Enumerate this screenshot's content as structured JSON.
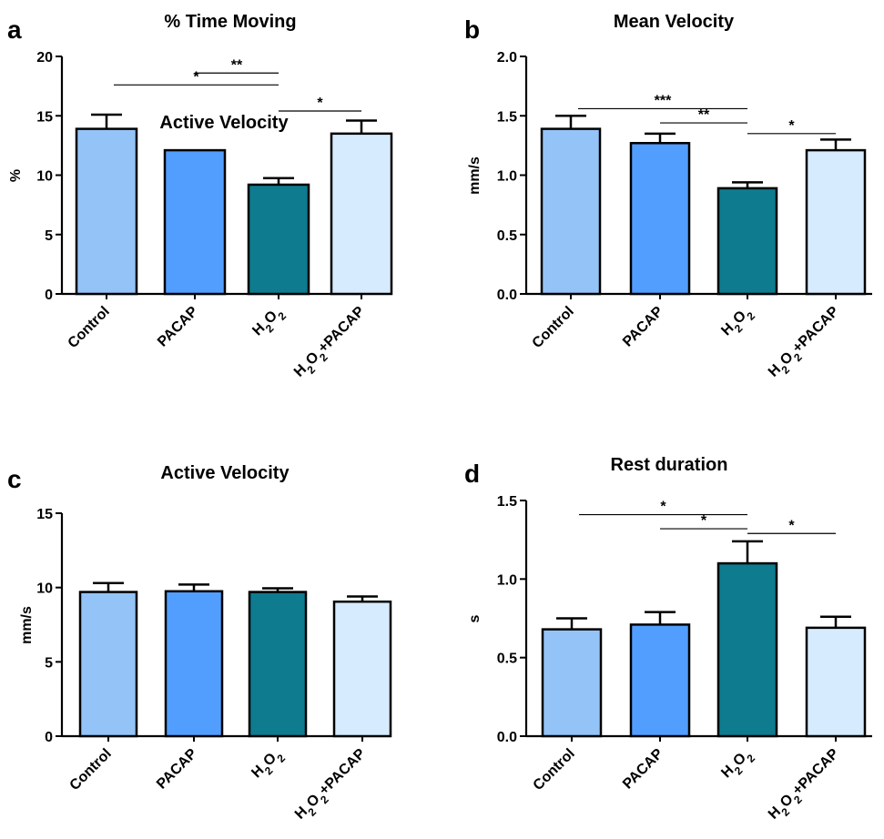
{
  "figure": {
    "panels": [
      {
        "letter": "a",
        "title": "% Time Moving",
        "overlay_text": "Active Velocity",
        "ylabel": "%",
        "ylim": [
          0,
          20
        ],
        "yticks": [
          "0",
          "5",
          "10",
          "15",
          "20"
        ],
        "categories": [
          "Control",
          "PACAP",
          "H2O2",
          "H2O2+PACAP"
        ],
        "values": [
          13.9,
          12.1,
          9.2,
          13.5
        ],
        "errors": [
          1.2,
          0,
          0.55,
          1.1
        ],
        "significance": [
          {
            "from": 0,
            "to": 2,
            "label": "*",
            "level": 17.6
          },
          {
            "from": 1,
            "to": 2,
            "label": "**",
            "level": 18.6
          },
          {
            "from": 2,
            "to": 3,
            "label": "*",
            "level": 15.4
          }
        ]
      },
      {
        "letter": "b",
        "title": "Mean Velocity",
        "ylabel": "mm/s",
        "ylim": [
          0,
          2.0
        ],
        "yticks": [
          "0.0",
          "0.5",
          "1.0",
          "1.5",
          "2.0"
        ],
        "categories": [
          "Control",
          "PACAP",
          "H2O2",
          "H2O2+PACAP"
        ],
        "values": [
          1.39,
          1.27,
          0.89,
          1.21
        ],
        "errors": [
          0.11,
          0.08,
          0.05,
          0.09
        ],
        "significance": [
          {
            "from": 0,
            "to": 2,
            "label": "***",
            "level": 1.56
          },
          {
            "from": 1,
            "to": 2,
            "label": "**",
            "level": 1.44
          },
          {
            "from": 2,
            "to": 3,
            "label": "*",
            "level": 1.35
          }
        ]
      },
      {
        "letter": "c",
        "title": "Active Velocity",
        "ylabel": "mm/s",
        "ylim": [
          0,
          15
        ],
        "yticks": [
          "0",
          "5",
          "10",
          "15"
        ],
        "categories": [
          "Control",
          "PACAP",
          "H2O2",
          "H2O2+PACAP"
        ],
        "values": [
          9.7,
          9.75,
          9.7,
          9.05
        ],
        "errors": [
          0.6,
          0.45,
          0.25,
          0.35
        ],
        "significance": []
      },
      {
        "letter": "d",
        "title": "Rest duration",
        "ylabel": "s",
        "ylim": [
          0,
          1.5
        ],
        "yticks": [
          "0.0",
          "0.5",
          "1.0",
          "1.5"
        ],
        "categories": [
          "Control",
          "PACAP",
          "H2O2",
          "H2O2+PACAP"
        ],
        "values": [
          0.68,
          0.71,
          1.1,
          0.69
        ],
        "errors": [
          0.07,
          0.08,
          0.14,
          0.07
        ],
        "significance": [
          {
            "from": 0,
            "to": 2,
            "label": "*",
            "level": 1.41
          },
          {
            "from": 1,
            "to": 2,
            "label": "*",
            "level": 1.32
          },
          {
            "from": 2,
            "to": 3,
            "label": "*",
            "level": 1.29
          }
        ]
      }
    ],
    "colors": [
      "#94c3f7",
      "#529eff",
      "#0e7b8f",
      "#d6ebfd"
    ]
  },
  "chart_data": [
    {
      "type": "bar",
      "title": "% Time Moving",
      "xlabel": "",
      "ylabel": "%",
      "categories": [
        "Control",
        "PACAP",
        "H2O2",
        "H2O2+PACAP"
      ],
      "values": [
        13.9,
        12.1,
        9.2,
        13.5
      ],
      "errors": [
        1.2,
        0,
        0.55,
        1.1
      ],
      "ylim": [
        0,
        20
      ],
      "grid": false
    },
    {
      "type": "bar",
      "title": "Mean Velocity",
      "xlabel": "",
      "ylabel": "mm/s",
      "categories": [
        "Control",
        "PACAP",
        "H2O2",
        "H2O2+PACAP"
      ],
      "values": [
        1.39,
        1.27,
        0.89,
        1.21
      ],
      "errors": [
        0.11,
        0.08,
        0.05,
        0.09
      ],
      "ylim": [
        0,
        2.0
      ],
      "grid": false
    },
    {
      "type": "bar",
      "title": "Active Velocity",
      "xlabel": "",
      "ylabel": "mm/s",
      "categories": [
        "Control",
        "PACAP",
        "H2O2",
        "H2O2+PACAP"
      ],
      "values": [
        9.7,
        9.75,
        9.7,
        9.05
      ],
      "errors": [
        0.6,
        0.45,
        0.25,
        0.35
      ],
      "ylim": [
        0,
        15
      ],
      "grid": false
    },
    {
      "type": "bar",
      "title": "Rest duration",
      "xlabel": "",
      "ylabel": "s",
      "categories": [
        "Control",
        "PACAP",
        "H2O2",
        "H2O2+PACAP"
      ],
      "values": [
        0.68,
        0.71,
        1.1,
        0.69
      ],
      "errors": [
        0.07,
        0.08,
        0.14,
        0.07
      ],
      "ylim": [
        0,
        1.5
      ],
      "grid": false
    }
  ]
}
